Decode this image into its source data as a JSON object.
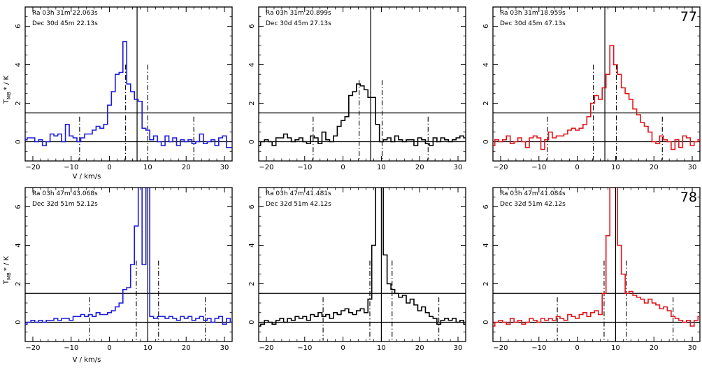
{
  "figure": {
    "ylabel_main": "T",
    "ylabel_sub": "MB",
    "ylabel_rest": "* / K",
    "xlabel": "V / km/s"
  },
  "chart_data": [
    {
      "type": "line",
      "step": true,
      "ra_label": "Ra 03h 31m 22.063s",
      "dec_label": "Dec 30d 45m 22.13s",
      "panel_number": "",
      "show_ylabel": true,
      "show_xlabel": true,
      "xlabel_under": false,
      "color": "#1a1adb",
      "xlim": [
        -22,
        32
      ],
      "ylim": [
        -1,
        7
      ],
      "xticks": [
        -20,
        -10,
        0,
        10,
        20,
        30
      ],
      "yticks": [
        0,
        2,
        4,
        6
      ],
      "hline": 1.5,
      "vline": 7.2,
      "dashdot": [
        {
          "x": -7.8,
          "y": 1.3
        },
        {
          "x": 4.2,
          "y": 4.0
        },
        {
          "x": 10.0,
          "y": 4.0
        },
        {
          "x": 22.0,
          "y": 1.3
        }
      ],
      "x": [
        -22,
        -21,
        -20,
        -19,
        -18,
        -17,
        -16,
        -15,
        -14,
        -13,
        -12,
        -11,
        -10,
        -9,
        -8,
        -7,
        -6,
        -5,
        -4,
        -3,
        -2,
        -1,
        0,
        1,
        2,
        3,
        4,
        5,
        6,
        7,
        8,
        9,
        10,
        11,
        12,
        13,
        14,
        15,
        16,
        17,
        18,
        19,
        20,
        21,
        22,
        23,
        24,
        25,
        26,
        27,
        28,
        29,
        30,
        31,
        32
      ],
      "y": [
        0.1,
        0.2,
        0.2,
        0.0,
        0.1,
        -0.2,
        0.0,
        0.4,
        0.3,
        0.4,
        0.0,
        0.9,
        0.3,
        0.2,
        0.0,
        0.2,
        0.4,
        0.4,
        0.6,
        0.8,
        0.7,
        0.9,
        1.9,
        2.6,
        3.5,
        3.6,
        5.2,
        3.0,
        2.6,
        2.2,
        2.1,
        0.7,
        0.6,
        0.1,
        0.3,
        0.0,
        -0.2,
        0.3,
        0.0,
        0.2,
        -0.2,
        0.1,
        0.0,
        0.1,
        -0.1,
        0.0,
        0.4,
        -0.1,
        0.0,
        0.1,
        -0.2,
        0.2,
        0.3,
        -0.3,
        -0.3
      ]
    },
    {
      "type": "line",
      "step": true,
      "ra_label": "Ra 03h 31m 20.899s",
      "dec_label": "Dec 30d 45m 27.13s",
      "panel_number": "",
      "show_ylabel": false,
      "show_xlabel": false,
      "xlabel_under": false,
      "color": "#000000",
      "xlim": [
        -22,
        32
      ],
      "ylim": [
        -1,
        7
      ],
      "xticks": [
        -20,
        -10,
        0,
        10,
        20,
        30
      ],
      "yticks": [
        0,
        2,
        4,
        6
      ],
      "hline": 1.5,
      "vline": 7.2,
      "dashdot": [
        {
          "x": -7.8,
          "y": 1.3
        },
        {
          "x": 4.2,
          "y": 3.2
        },
        {
          "x": 10.2,
          "y": 3.2
        },
        {
          "x": 22.2,
          "y": 1.3
        }
      ],
      "x": [
        -22,
        -21,
        -20,
        -19,
        -18,
        -17,
        -16,
        -15,
        -14,
        -13,
        -12,
        -11,
        -10,
        -9,
        -8,
        -7,
        -6,
        -5,
        -4,
        -3,
        -2,
        -1,
        0,
        1,
        2,
        3,
        4,
        5,
        6,
        7,
        8,
        9,
        10,
        11,
        12,
        13,
        14,
        15,
        16,
        17,
        18,
        19,
        20,
        21,
        22,
        23,
        24,
        25,
        26,
        27,
        28,
        29,
        30,
        31,
        32
      ],
      "y": [
        -0.2,
        0.0,
        0.1,
        0.0,
        -0.2,
        0.2,
        0.2,
        0.4,
        0.2,
        0.0,
        0.1,
        0.2,
        0.0,
        -0.1,
        0.3,
        0.2,
        -0.1,
        0.5,
        0.1,
        0.0,
        0.3,
        0.8,
        1.1,
        1.3,
        2.4,
        2.6,
        3.0,
        2.9,
        2.7,
        2.3,
        2.3,
        0.9,
        0.0,
        0.1,
        0.2,
        0.0,
        0.3,
        0.1,
        0.0,
        0.1,
        0.1,
        -0.2,
        0.2,
        0.1,
        -0.1,
        -0.2,
        0.2,
        0.0,
        0.2,
        0.1,
        0.0,
        0.1,
        0.2,
        0.3,
        0.2
      ]
    },
    {
      "type": "line",
      "step": true,
      "ra_label": "Ra 03h 31m 18.959s",
      "dec_label": "Dec 30d 45m 47.13s",
      "panel_number": "77",
      "show_ylabel": false,
      "show_xlabel": false,
      "xlabel_under": false,
      "color": "#e0141a",
      "xlim": [
        -22,
        32
      ],
      "ylim": [
        -1,
        7
      ],
      "xticks": [
        -20,
        -10,
        0,
        10,
        20,
        30
      ],
      "yticks": [
        0,
        2,
        4,
        6
      ],
      "hline": 1.5,
      "vline": 7.2,
      "dashdot": [
        {
          "x": -7.8,
          "y": 1.3
        },
        {
          "x": 4.2,
          "y": 4.0
        },
        {
          "x": 10.2,
          "y": 4.0
        },
        {
          "x": 22.2,
          "y": 1.3
        }
      ],
      "x": [
        -22,
        -21,
        -20,
        -19,
        -18,
        -17,
        -16,
        -15,
        -14,
        -13,
        -12,
        -11,
        -10,
        -9,
        -8,
        -7,
        -6,
        -5,
        -4,
        -3,
        -2,
        -1,
        0,
        1,
        2,
        3,
        4,
        5,
        6,
        7,
        8,
        9,
        10,
        11,
        12,
        13,
        14,
        15,
        16,
        17,
        18,
        19,
        20,
        21,
        22,
        23,
        24,
        25,
        26,
        27,
        28,
        29,
        30,
        31,
        32
      ],
      "y": [
        -0.2,
        0.1,
        0.0,
        0.1,
        0.3,
        -0.1,
        0.0,
        0.2,
        0.0,
        -0.3,
        0.2,
        0.3,
        0.2,
        -0.4,
        0.1,
        0.5,
        0.2,
        0.3,
        0.3,
        0.4,
        0.6,
        0.7,
        0.6,
        0.7,
        0.9,
        1.3,
        2.0,
        2.4,
        2.2,
        2.8,
        3.5,
        5.0,
        4.0,
        3.5,
        2.8,
        2.5,
        2.2,
        1.7,
        1.4,
        1.0,
        0.8,
        0.5,
        0.0,
        -0.1,
        0.3,
        0.1,
        0.0,
        -0.4,
        0.1,
        -0.3,
        0.3,
        0.2,
        -0.2,
        0.0,
        0.1
      ]
    },
    {
      "type": "line",
      "step": true,
      "ra_label": "Ra 03h 47m 43.068s",
      "dec_label": "Dec 32d 51m 52.12s",
      "panel_number": "",
      "show_ylabel": true,
      "show_xlabel": true,
      "xlabel_under": true,
      "color": "#1a1adb",
      "xlim": [
        -22,
        32
      ],
      "ylim": [
        -1,
        7
      ],
      "xticks": [
        -20,
        -10,
        0,
        10,
        20,
        30
      ],
      "yticks": [
        0,
        2,
        4,
        6
      ],
      "hline": 1.5,
      "vline": 10.0,
      "dashdot": [
        {
          "x": -5.2,
          "y": 1.3
        },
        {
          "x": 7.0,
          "y": 3.2
        },
        {
          "x": 12.8,
          "y": 3.2
        },
        {
          "x": 25.0,
          "y": 1.3
        }
      ],
      "x": [
        -22,
        -21,
        -20,
        -19,
        -18,
        -17,
        -16,
        -15,
        -14,
        -13,
        -12,
        -11,
        -10,
        -9,
        -8,
        -7,
        -6,
        -5,
        -4,
        -3,
        -2,
        -1,
        0,
        1,
        2,
        3,
        4,
        5,
        6,
        7,
        8,
        9,
        10,
        11,
        12,
        13,
        14,
        15,
        16,
        17,
        18,
        19,
        20,
        21,
        22,
        23,
        24,
        25,
        26,
        27,
        28,
        29,
        30,
        31,
        32
      ],
      "y": [
        -0.1,
        0.0,
        0.1,
        0.0,
        0.1,
        0.0,
        0.1,
        0.1,
        0.2,
        0.1,
        0.2,
        0.2,
        0.1,
        0.3,
        0.3,
        0.4,
        0.3,
        0.4,
        0.3,
        0.5,
        0.4,
        0.4,
        0.5,
        0.6,
        0.8,
        1.0,
        1.7,
        1.8,
        3.0,
        5.0,
        8.5,
        3.0,
        8.5,
        0.3,
        0.2,
        0.3,
        0.3,
        0.2,
        0.3,
        0.2,
        0.1,
        0.3,
        0.2,
        0.3,
        0.1,
        0.2,
        0.3,
        0.1,
        0.2,
        0.0,
        0.2,
        0.3,
        -0.1,
        0.2,
        0.0
      ]
    },
    {
      "type": "line",
      "step": true,
      "ra_label": "Ra 03h 47m 41.481s",
      "dec_label": "Dec 32d 51m 42.12s",
      "panel_number": "",
      "show_ylabel": false,
      "show_xlabel": false,
      "xlabel_under": false,
      "color": "#000000",
      "xlim": [
        -22,
        32
      ],
      "ylim": [
        -1,
        7
      ],
      "xticks": [
        -20,
        -10,
        0,
        10,
        20,
        30
      ],
      "yticks": [
        0,
        2,
        4,
        6
      ],
      "hline": 1.5,
      "vline": 10.0,
      "dashdot": [
        {
          "x": -5.2,
          "y": 1.3
        },
        {
          "x": 7.0,
          "y": 3.2
        },
        {
          "x": 12.8,
          "y": 3.2
        },
        {
          "x": 25.0,
          "y": 1.3
        }
      ],
      "x": [
        -22,
        -21,
        -20,
        -19,
        -18,
        -17,
        -16,
        -15,
        -14,
        -13,
        -12,
        -11,
        -10,
        -9,
        -8,
        -7,
        -6,
        -5,
        -4,
        -3,
        -2,
        -1,
        0,
        1,
        2,
        3,
        4,
        5,
        6,
        7,
        8,
        9,
        10,
        11,
        12,
        13,
        14,
        15,
        16,
        17,
        18,
        19,
        20,
        21,
        22,
        23,
        24,
        25,
        26,
        27,
        28,
        29,
        30,
        31,
        32
      ],
      "y": [
        -0.2,
        -0.1,
        0.1,
        0.0,
        -0.1,
        0.1,
        0.2,
        0.0,
        0.2,
        0.1,
        0.3,
        0.2,
        0.3,
        0.1,
        0.4,
        0.3,
        0.5,
        0.3,
        0.4,
        0.2,
        0.5,
        0.4,
        0.6,
        0.7,
        0.5,
        0.4,
        0.6,
        0.7,
        0.5,
        1.2,
        4.0,
        8.5,
        8.5,
        3.5,
        2.0,
        1.7,
        1.5,
        1.3,
        1.4,
        1.0,
        1.2,
        0.9,
        0.6,
        0.8,
        0.5,
        0.3,
        0.2,
        -0.1,
        0.1,
        0.2,
        0.1,
        0.2,
        0.0,
        0.1,
        -0.1
      ]
    },
    {
      "type": "line",
      "step": true,
      "ra_label": "Ra 03h 47m 41.084s",
      "dec_label": "Dec 32d 51m 42.12s",
      "panel_number": "78",
      "show_ylabel": false,
      "show_xlabel": false,
      "xlabel_under": false,
      "color": "#e0141a",
      "xlim": [
        -22,
        32
      ],
      "ylim": [
        -1,
        7
      ],
      "xticks": [
        -20,
        -10,
        0,
        10,
        20,
        30
      ],
      "yticks": [
        0,
        2,
        4,
        6
      ],
      "hline": 1.5,
      "vline": 10.0,
      "dashdot": [
        {
          "x": -5.2,
          "y": 1.3
        },
        {
          "x": 7.0,
          "y": 3.2
        },
        {
          "x": 12.8,
          "y": 3.2
        },
        {
          "x": 25.0,
          "y": 1.3
        }
      ],
      "x": [
        -22,
        -21,
        -20,
        -19,
        -18,
        -17,
        -16,
        -15,
        -14,
        -13,
        -12,
        -11,
        -10,
        -9,
        -8,
        -7,
        -6,
        -5,
        -4,
        -3,
        -2,
        -1,
        0,
        1,
        2,
        3,
        4,
        5,
        6,
        7,
        8,
        9,
        10,
        11,
        12,
        13,
        14,
        15,
        16,
        17,
        18,
        19,
        20,
        21,
        22,
        23,
        24,
        25,
        26,
        27,
        28,
        29,
        30,
        31,
        32
      ],
      "y": [
        -0.2,
        0.0,
        0.1,
        0.0,
        -0.1,
        0.2,
        0.0,
        0.1,
        -0.1,
        0.0,
        0.2,
        0.1,
        0.0,
        0.2,
        0.1,
        0.2,
        0.1,
        0.3,
        0.2,
        0.1,
        0.4,
        0.3,
        0.2,
        0.4,
        0.5,
        0.3,
        0.5,
        0.6,
        0.4,
        1.5,
        4.5,
        8.5,
        8.5,
        4.0,
        2.5,
        1.5,
        1.6,
        1.4,
        1.3,
        1.2,
        1.0,
        1.2,
        1.0,
        0.9,
        0.7,
        0.8,
        0.6,
        0.3,
        0.2,
        0.1,
        0.0,
        0.1,
        -0.2,
        0.1,
        0.3
      ]
    }
  ]
}
